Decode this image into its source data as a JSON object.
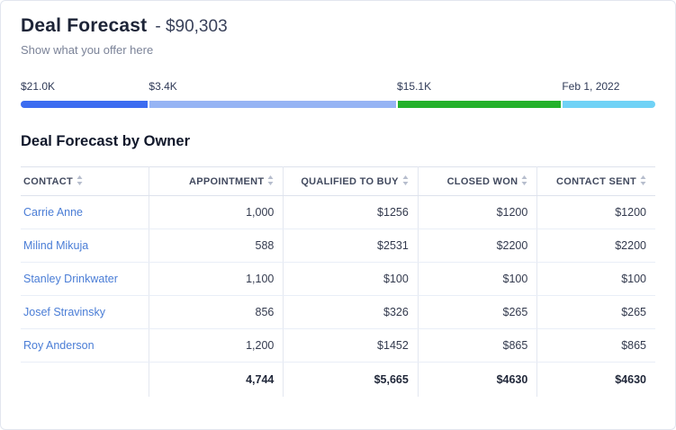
{
  "card": {
    "title": "Deal Forecast",
    "amount": "- $90,303",
    "subtitle": "Show what you offer here"
  },
  "progress": {
    "segments": [
      {
        "label": "$21.0K",
        "color": "#3c6cf0",
        "width_pct": 20.2
      },
      {
        "label": "$3.4K",
        "color": "#96b4f4",
        "width_pct": 39.1
      },
      {
        "label": "$15.1K",
        "color": "#24b12b",
        "width_pct": 26.0
      },
      {
        "label": "Feb 1, 2022",
        "color": "#70d2f6",
        "width_pct": 14.7
      }
    ]
  },
  "section_title": "Deal Forecast by Owner",
  "table": {
    "columns": [
      "CONTACT",
      "APPOINTMENT",
      "QUALIFIED TO BUY",
      "CLOSED WON",
      "CONTACT SENT"
    ],
    "rows": [
      {
        "contact": "Carrie Anne",
        "values": [
          "1,000",
          "$1256",
          "$1200",
          "$1200"
        ]
      },
      {
        "contact": "Milind Mikuja",
        "values": [
          "588",
          "$2531",
          "$2200",
          "$2200"
        ]
      },
      {
        "contact": "Stanley Drinkwater",
        "values": [
          "1,100",
          "$100",
          "$100",
          "$100"
        ]
      },
      {
        "contact": "Josef Stravinsky",
        "values": [
          "856",
          "$326",
          "$265",
          "$265"
        ]
      },
      {
        "contact": "Roy Anderson",
        "values": [
          "1,200",
          "$1452",
          "$865",
          "$865"
        ]
      }
    ],
    "totals": [
      "",
      "4,744",
      "$5,665",
      "$4630",
      "$4630"
    ]
  },
  "colors": {
    "link_blue": "#4a7dd6",
    "title_dark": "#1d2437",
    "sort_icon_gray": "#b6bdcd"
  }
}
